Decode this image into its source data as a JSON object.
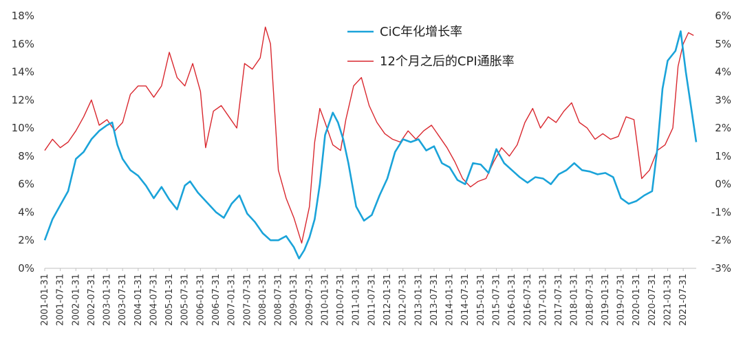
{
  "chart_data": {
    "type": "line",
    "title": "",
    "left_axis": {
      "ylim": [
        0,
        18
      ],
      "ticks": [
        "0%",
        "2%",
        "4%",
        "6%",
        "8%",
        "10%",
        "12%",
        "14%",
        "16%",
        "18%"
      ]
    },
    "right_axis": {
      "ylim": [
        -3,
        6
      ],
      "ticks": [
        "-3%",
        "-2%",
        "-1%",
        "0%",
        "1%",
        "2%",
        "3%",
        "4%",
        "5%",
        "6%"
      ]
    },
    "x_ticks": [
      "2001-01-31",
      "2001-07-31",
      "2002-01-31",
      "2002-07-31",
      "2003-01-31",
      "2003-07-31",
      "2004-01-31",
      "2004-07-31",
      "2005-01-31",
      "2005-07-31",
      "2006-01-31",
      "2006-07-31",
      "2007-01-31",
      "2007-07-31",
      "2008-01-31",
      "2008-07-31",
      "2009-01-31",
      "2009-07-31",
      "2010-01-31",
      "2010-07-31",
      "2011-01-31",
      "2011-07-31",
      "2012-01-31",
      "2012-07-31",
      "2013-01-31",
      "2013-07-31",
      "2014-01-31",
      "2014-07-31",
      "2015-01-31",
      "2015-07-31",
      "2016-01-31",
      "2016-07-31",
      "2017-01-31",
      "2017-07-31",
      "2018-01-31",
      "2018-07-31",
      "2019-01-31",
      "2019-07-31",
      "2020-01-31",
      "2020-07-31",
      "2021-01-31",
      "2021-07-31"
    ],
    "legend_position": "top-center",
    "grid": false,
    "series": [
      {
        "name": "CiC年化增长率",
        "axis": "left",
        "color": "#1aa3d9",
        "points": [
          [
            "2001-01",
            2.0
          ],
          [
            "2001-04",
            3.5
          ],
          [
            "2001-07",
            4.5
          ],
          [
            "2001-10",
            5.5
          ],
          [
            "2002-01",
            7.8
          ],
          [
            "2002-04",
            8.3
          ],
          [
            "2002-07",
            9.2
          ],
          [
            "2002-10",
            9.8
          ],
          [
            "2003-01",
            10.2
          ],
          [
            "2003-03",
            10.4
          ],
          [
            "2003-05",
            8.8
          ],
          [
            "2003-07",
            7.8
          ],
          [
            "2003-10",
            7.0
          ],
          [
            "2004-01",
            6.6
          ],
          [
            "2004-04",
            5.9
          ],
          [
            "2004-07",
            5.0
          ],
          [
            "2004-10",
            5.8
          ],
          [
            "2005-01",
            4.9
          ],
          [
            "2005-04",
            4.2
          ],
          [
            "2005-07",
            5.9
          ],
          [
            "2005-09",
            6.2
          ],
          [
            "2005-12",
            5.4
          ],
          [
            "2006-03",
            4.8
          ],
          [
            "2006-07",
            4.0
          ],
          [
            "2006-10",
            3.6
          ],
          [
            "2007-01",
            4.6
          ],
          [
            "2007-04",
            5.2
          ],
          [
            "2007-07",
            3.9
          ],
          [
            "2007-10",
            3.3
          ],
          [
            "2008-01",
            2.5
          ],
          [
            "2008-04",
            2.0
          ],
          [
            "2008-07",
            2.0
          ],
          [
            "2008-10",
            2.3
          ],
          [
            "2009-01",
            1.5
          ],
          [
            "2009-03",
            0.7
          ],
          [
            "2009-05",
            1.3
          ],
          [
            "2009-07",
            2.2
          ],
          [
            "2009-09",
            3.5
          ],
          [
            "2009-11",
            6.0
          ],
          [
            "2010-01",
            9.5
          ],
          [
            "2010-04",
            11.1
          ],
          [
            "2010-06",
            10.4
          ],
          [
            "2010-08",
            9.2
          ],
          [
            "2010-10",
            7.5
          ],
          [
            "2011-01",
            4.4
          ],
          [
            "2011-04",
            3.4
          ],
          [
            "2011-07",
            3.8
          ],
          [
            "2011-10",
            5.2
          ],
          [
            "2012-01",
            6.4
          ],
          [
            "2012-04",
            8.3
          ],
          [
            "2012-07",
            9.2
          ],
          [
            "2012-10",
            9.0
          ],
          [
            "2013-01",
            9.2
          ],
          [
            "2013-04",
            8.4
          ],
          [
            "2013-07",
            8.7
          ],
          [
            "2013-10",
            7.5
          ],
          [
            "2014-01",
            7.2
          ],
          [
            "2014-04",
            6.3
          ],
          [
            "2014-07",
            6.0
          ],
          [
            "2014-10",
            7.5
          ],
          [
            "2015-01",
            7.4
          ],
          [
            "2015-04",
            6.8
          ],
          [
            "2015-07",
            8.5
          ],
          [
            "2015-10",
            7.5
          ],
          [
            "2016-01",
            7.0
          ],
          [
            "2016-04",
            6.5
          ],
          [
            "2016-07",
            6.1
          ],
          [
            "2016-10",
            6.5
          ],
          [
            "2017-01",
            6.4
          ],
          [
            "2017-04",
            6.0
          ],
          [
            "2017-07",
            6.7
          ],
          [
            "2017-10",
            7.0
          ],
          [
            "2018-01",
            7.5
          ],
          [
            "2018-04",
            7.0
          ],
          [
            "2018-07",
            6.9
          ],
          [
            "2018-10",
            6.7
          ],
          [
            "2019-01",
            6.8
          ],
          [
            "2019-04",
            6.5
          ],
          [
            "2019-07",
            5.0
          ],
          [
            "2019-10",
            4.6
          ],
          [
            "2020-01",
            4.8
          ],
          [
            "2020-04",
            5.2
          ],
          [
            "2020-07",
            5.5
          ],
          [
            "2020-09",
            8.5
          ],
          [
            "2020-11",
            12.8
          ],
          [
            "2021-01",
            14.8
          ],
          [
            "2021-04",
            15.5
          ],
          [
            "2021-06",
            16.9
          ],
          [
            "2021-08",
            14.0
          ],
          [
            "2021-10",
            11.5
          ],
          [
            "2021-12",
            9.0
          ]
        ]
      },
      {
        "name": "12个月之后的CPI通胀率",
        "axis": "right",
        "color": "#d9272e",
        "points": [
          [
            "2001-01",
            1.2
          ],
          [
            "2001-04",
            1.6
          ],
          [
            "2001-07",
            1.3
          ],
          [
            "2001-10",
            1.5
          ],
          [
            "2002-01",
            1.9
          ],
          [
            "2002-04",
            2.4
          ],
          [
            "2002-07",
            3.0
          ],
          [
            "2002-10",
            2.1
          ],
          [
            "2003-01",
            2.3
          ],
          [
            "2003-04",
            1.9
          ],
          [
            "2003-07",
            2.2
          ],
          [
            "2003-10",
            3.2
          ],
          [
            "2004-01",
            3.5
          ],
          [
            "2004-04",
            3.5
          ],
          [
            "2004-07",
            3.1
          ],
          [
            "2004-10",
            3.5
          ],
          [
            "2005-01",
            4.7
          ],
          [
            "2005-04",
            3.8
          ],
          [
            "2005-07",
            3.5
          ],
          [
            "2005-10",
            4.3
          ],
          [
            "2006-01",
            3.3
          ],
          [
            "2006-03",
            1.3
          ],
          [
            "2006-06",
            2.6
          ],
          [
            "2006-09",
            2.8
          ],
          [
            "2006-12",
            2.4
          ],
          [
            "2007-03",
            2.0
          ],
          [
            "2007-06",
            4.3
          ],
          [
            "2007-09",
            4.1
          ],
          [
            "2007-12",
            4.5
          ],
          [
            "2008-02",
            5.6
          ],
          [
            "2008-04",
            5.0
          ],
          [
            "2008-07",
            0.5
          ],
          [
            "2008-10",
            -0.5
          ],
          [
            "2009-01",
            -1.2
          ],
          [
            "2009-04",
            -2.1
          ],
          [
            "2009-07",
            -0.8
          ],
          [
            "2009-09",
            1.5
          ],
          [
            "2009-11",
            2.7
          ],
          [
            "2010-01",
            2.2
          ],
          [
            "2010-04",
            1.4
          ],
          [
            "2010-07",
            1.2
          ],
          [
            "2010-09",
            2.3
          ],
          [
            "2010-12",
            3.5
          ],
          [
            "2011-03",
            3.8
          ],
          [
            "2011-06",
            2.8
          ],
          [
            "2011-09",
            2.2
          ],
          [
            "2011-12",
            1.8
          ],
          [
            "2012-03",
            1.6
          ],
          [
            "2012-06",
            1.5
          ],
          [
            "2012-09",
            1.9
          ],
          [
            "2012-12",
            1.6
          ],
          [
            "2013-03",
            1.9
          ],
          [
            "2013-06",
            2.1
          ],
          [
            "2013-09",
            1.7
          ],
          [
            "2013-12",
            1.3
          ],
          [
            "2014-03",
            0.8
          ],
          [
            "2014-06",
            0.2
          ],
          [
            "2014-09",
            -0.1
          ],
          [
            "2014-12",
            0.1
          ],
          [
            "2015-03",
            0.2
          ],
          [
            "2015-06",
            0.8
          ],
          [
            "2015-09",
            1.3
          ],
          [
            "2015-12",
            1.0
          ],
          [
            "2016-03",
            1.4
          ],
          [
            "2016-06",
            2.2
          ],
          [
            "2016-09",
            2.7
          ],
          [
            "2016-12",
            2.0
          ],
          [
            "2017-03",
            2.4
          ],
          [
            "2017-06",
            2.2
          ],
          [
            "2017-09",
            2.6
          ],
          [
            "2017-12",
            2.9
          ],
          [
            "2018-03",
            2.2
          ],
          [
            "2018-06",
            2.0
          ],
          [
            "2018-09",
            1.6
          ],
          [
            "2018-12",
            1.8
          ],
          [
            "2019-03",
            1.6
          ],
          [
            "2019-06",
            1.7
          ],
          [
            "2019-09",
            2.4
          ],
          [
            "2019-12",
            2.3
          ],
          [
            "2020-03",
            0.2
          ],
          [
            "2020-06",
            0.5
          ],
          [
            "2020-09",
            1.2
          ],
          [
            "2020-12",
            1.4
          ],
          [
            "2021-03",
            2.0
          ],
          [
            "2021-05",
            4.2
          ],
          [
            "2021-07",
            5.0
          ],
          [
            "2021-09",
            5.4
          ],
          [
            "2021-11",
            5.3
          ]
        ]
      }
    ]
  }
}
